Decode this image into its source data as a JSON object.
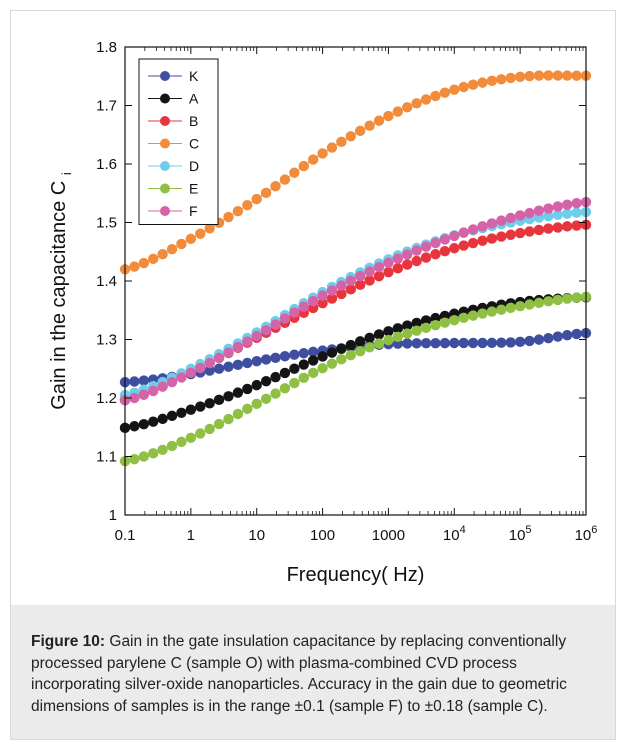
{
  "chart_data": {
    "type": "scatter",
    "xlabel": "Frequency( Hz)",
    "ylabel": "Gain in the capacitance C",
    "ylabel_subscript": "i",
    "xscale": "log",
    "xlim": [
      0.1,
      1000000
    ],
    "ylim": [
      1.0,
      1.8
    ],
    "x_ticks": [
      {
        "value": 0.1,
        "label": "0.1"
      },
      {
        "value": 1,
        "label": "1"
      },
      {
        "value": 10,
        "label": "10"
      },
      {
        "value": 100,
        "label": "100"
      },
      {
        "value": 1000,
        "label": "1000"
      },
      {
        "value": 10000,
        "label": "10",
        "sup": "4"
      },
      {
        "value": 100000,
        "label": "10",
        "sup": "5"
      },
      {
        "value": 1000000,
        "label": "10",
        "sup": "6"
      }
    ],
    "y_ticks": [
      "1",
      "1.1",
      "1.2",
      "1.3",
      "1.4",
      "1.5",
      "1.6",
      "1.7",
      "1.8"
    ],
    "legend_position": "top-left",
    "grid": false,
    "points_per_decade": 7,
    "series": [
      {
        "name": "K",
        "color": "#3f4fa0",
        "log_x": [
          -1,
          0,
          1,
          2,
          3,
          4,
          5,
          6
        ],
        "y": [
          1.227,
          1.241,
          1.263,
          1.281,
          1.292,
          1.294,
          1.296,
          1.311
        ]
      },
      {
        "name": "A",
        "color": "#141414",
        "log_x": [
          -1,
          0,
          1,
          2,
          3,
          4,
          5,
          6
        ],
        "y": [
          1.149,
          1.18,
          1.222,
          1.271,
          1.314,
          1.344,
          1.364,
          1.372
        ]
      },
      {
        "name": "B",
        "color": "#e8343c",
        "log_x": [
          -1,
          0,
          1,
          2,
          3,
          4,
          5,
          6
        ],
        "y": [
          1.197,
          1.244,
          1.303,
          1.362,
          1.415,
          1.456,
          1.482,
          1.496
        ]
      },
      {
        "name": "C",
        "color": "#f28c3a",
        "log_x": [
          -1,
          0,
          1,
          2,
          3,
          4,
          5,
          6
        ],
        "y": [
          1.42,
          1.472,
          1.54,
          1.618,
          1.682,
          1.727,
          1.749,
          1.751
        ]
      },
      {
        "name": "D",
        "color": "#6fcdea",
        "log_x": [
          -1,
          0,
          1,
          2,
          3,
          4,
          5,
          6
        ],
        "y": [
          1.205,
          1.25,
          1.312,
          1.381,
          1.437,
          1.478,
          1.503,
          1.518
        ]
      },
      {
        "name": "E",
        "color": "#8fc043",
        "log_x": [
          -1,
          0,
          1,
          2,
          3,
          4,
          5,
          6
        ],
        "y": [
          1.092,
          1.132,
          1.19,
          1.251,
          1.299,
          1.333,
          1.357,
          1.373
        ]
      },
      {
        "name": "F",
        "color": "#d463a8",
        "log_x": [
          -1,
          0,
          1,
          2,
          3,
          4,
          5,
          6
        ],
        "y": [
          1.196,
          1.243,
          1.306,
          1.375,
          1.431,
          1.477,
          1.512,
          1.535
        ]
      }
    ]
  },
  "caption": {
    "label": "Figure 10:",
    "text": " Gain in the gate insulation capacitance by replacing conventionally processed parylene C (sample O) with plasma-combined CVD process incorporating silver-oxide nanoparticles. Accuracy in the gain due to geometric dimensions of samples is in the range ±0.1 (sample F) to ±0.18 (sample C)."
  }
}
